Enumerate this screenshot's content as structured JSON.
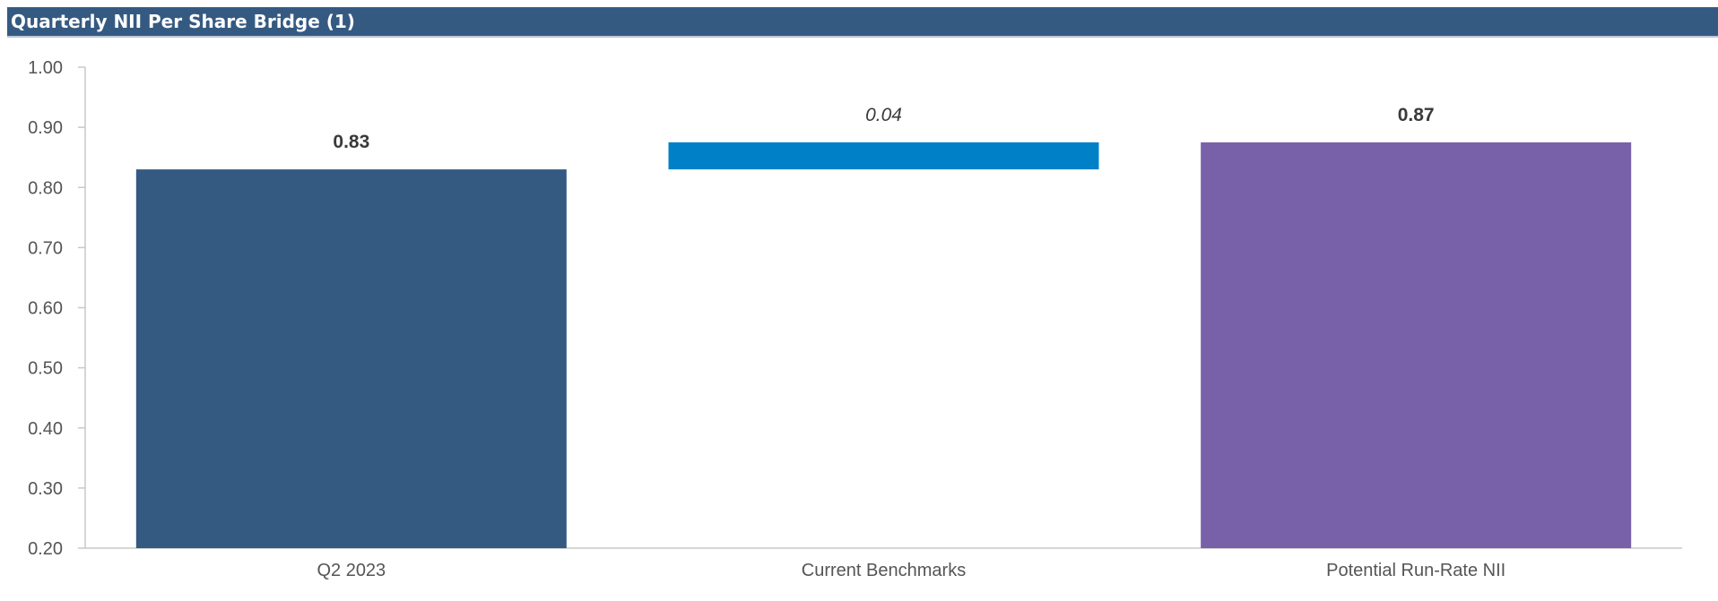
{
  "header": {
    "title": "Quarterly NII Per Share Bridge (1)",
    "background": "#355A82"
  },
  "chart_data": {
    "type": "bar",
    "subtype": "waterfall",
    "title": "Quarterly NII Per Share Bridge (1)",
    "xlabel": "",
    "ylabel": "",
    "ylim": [
      0.2,
      1.0
    ],
    "yticks": [
      "0.20",
      "0.30",
      "0.40",
      "0.50",
      "0.60",
      "0.70",
      "0.80",
      "0.90",
      "1.00"
    ],
    "grid": false,
    "legend": "none",
    "categories": [
      "Q2 2023",
      "Current Benchmarks",
      "Potential Run-Rate NII"
    ],
    "bars": [
      {
        "category": "Q2 2023",
        "start": 0.2,
        "end": 0.83,
        "label": "0.83",
        "label_style": "bold",
        "color": "#355A82"
      },
      {
        "category": "Current Benchmarks",
        "start": 0.83,
        "end": 0.875,
        "label": "0.04",
        "label_style": "italic",
        "color": "#0080C6"
      },
      {
        "category": "Potential Run-Rate NII",
        "start": 0.2,
        "end": 0.875,
        "label": "0.87",
        "label_style": "bold",
        "color": "#7861A8"
      }
    ]
  }
}
